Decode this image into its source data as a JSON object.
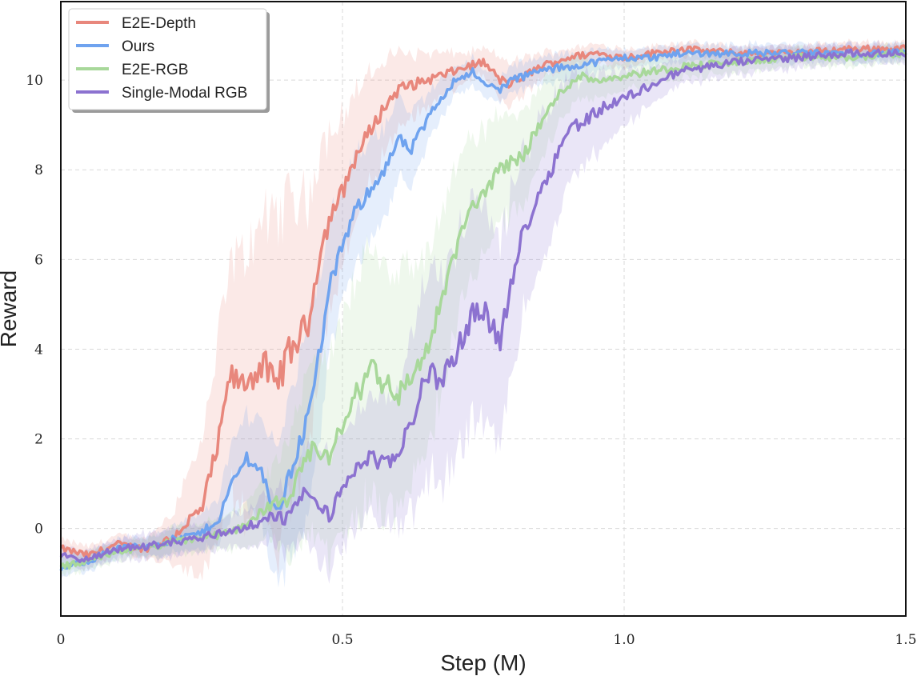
{
  "chart_data": {
    "type": "line",
    "title": "",
    "xlabel": "Step (M)",
    "ylabel": "Reward",
    "xlim": [
      0,
      1.5
    ],
    "ylim": [
      -1.95,
      11.75
    ],
    "xticks": [
      0,
      0.5,
      1.0,
      1.5
    ],
    "xtick_labels": [
      "0",
      "0.5",
      "1.0",
      "1.5"
    ],
    "yticks": [
      0,
      2,
      4,
      6,
      8,
      10
    ],
    "ytick_labels": [
      "0",
      "2",
      "4",
      "6",
      "8",
      "10"
    ],
    "grid": true,
    "legend_position": "top-left",
    "shaded_band": "variance around each series",
    "series": [
      {
        "name": "E2E-Depth",
        "color": "#e8877c",
        "x": [
          0,
          0.05,
          0.1,
          0.15,
          0.2,
          0.22,
          0.25,
          0.28,
          0.3,
          0.32,
          0.34,
          0.36,
          0.38,
          0.4,
          0.42,
          0.44,
          0.46,
          0.48,
          0.5,
          0.52,
          0.55,
          0.58,
          0.6,
          0.65,
          0.7,
          0.72,
          0.75,
          0.78,
          0.8,
          0.85,
          0.9,
          0.95,
          1.0,
          1.05,
          1.1,
          1.2,
          1.3,
          1.4,
          1.5
        ],
        "y": [
          -0.45,
          -0.6,
          -0.35,
          -0.45,
          -0.2,
          0.1,
          0.4,
          1.9,
          3.4,
          3.2,
          3.4,
          3.7,
          3.1,
          3.8,
          4.2,
          4.6,
          6.2,
          7.0,
          7.5,
          8.2,
          8.9,
          9.5,
          9.8,
          10.0,
          10.2,
          10.3,
          10.4,
          10.0,
          9.9,
          10.3,
          10.5,
          10.6,
          10.5,
          10.6,
          10.7,
          10.6,
          10.6,
          10.7,
          10.7
        ],
        "std": [
          0.2,
          0.2,
          0.2,
          0.2,
          0.6,
          1.0,
          1.5,
          2.3,
          2.6,
          2.8,
          3.0,
          3.2,
          3.8,
          3.6,
          3.2,
          2.8,
          2.2,
          1.9,
          1.7,
          1.5,
          1.2,
          1.0,
          0.8,
          0.6,
          0.4,
          0.3,
          0.3,
          0.5,
          0.5,
          0.3,
          0.2,
          0.2,
          0.2,
          0.15,
          0.15,
          0.15,
          0.15,
          0.15,
          0.15
        ]
      },
      {
        "name": "Ours",
        "color": "#6fa3ef",
        "x": [
          0,
          0.05,
          0.1,
          0.15,
          0.2,
          0.25,
          0.28,
          0.3,
          0.33,
          0.36,
          0.38,
          0.4,
          0.42,
          0.44,
          0.46,
          0.48,
          0.5,
          0.52,
          0.55,
          0.58,
          0.6,
          0.62,
          0.65,
          0.68,
          0.7,
          0.73,
          0.75,
          0.78,
          0.8,
          0.85,
          0.9,
          0.95,
          1.0,
          1.05,
          1.1,
          1.2,
          1.3,
          1.4,
          1.5
        ],
        "y": [
          -0.9,
          -0.7,
          -0.45,
          -0.4,
          -0.25,
          -0.1,
          0.2,
          0.9,
          1.6,
          1.2,
          0.3,
          0.9,
          1.8,
          2.5,
          4.0,
          5.5,
          6.3,
          7.0,
          7.6,
          8.1,
          8.7,
          8.4,
          9.1,
          9.7,
          10.0,
          10.2,
          9.9,
          9.8,
          10.0,
          10.2,
          10.3,
          10.4,
          10.5,
          10.5,
          10.6,
          10.6,
          10.6,
          10.6,
          10.6
        ],
        "std": [
          0.2,
          0.2,
          0.2,
          0.2,
          0.3,
          0.4,
          0.5,
          0.8,
          1.0,
          1.2,
          1.5,
          1.8,
          2.0,
          2.0,
          1.8,
          1.5,
          1.2,
          1.2,
          1.1,
          1.0,
          0.9,
          0.8,
          0.6,
          0.4,
          0.3,
          0.3,
          0.3,
          0.3,
          0.3,
          0.3,
          0.3,
          0.25,
          0.2,
          0.2,
          0.2,
          0.2,
          0.2,
          0.2,
          0.2
        ]
      },
      {
        "name": "E2E-RGB",
        "color": "#a8d89a",
        "x": [
          0,
          0.05,
          0.1,
          0.15,
          0.2,
          0.25,
          0.3,
          0.35,
          0.38,
          0.4,
          0.42,
          0.45,
          0.48,
          0.5,
          0.52,
          0.55,
          0.57,
          0.6,
          0.62,
          0.65,
          0.68,
          0.7,
          0.72,
          0.75,
          0.78,
          0.8,
          0.82,
          0.85,
          0.88,
          0.9,
          0.92,
          0.95,
          1.0,
          1.05,
          1.1,
          1.2,
          1.3,
          1.4,
          1.5
        ],
        "y": [
          -0.85,
          -0.75,
          -0.5,
          -0.45,
          -0.3,
          -0.2,
          -0.1,
          0.3,
          0.6,
          0.5,
          1.1,
          1.8,
          1.6,
          2.3,
          2.8,
          3.7,
          3.3,
          3.0,
          3.3,
          4.0,
          5.2,
          6.2,
          6.9,
          7.5,
          8.0,
          8.2,
          8.3,
          9.0,
          9.6,
          9.9,
          10.1,
          10.0,
          10.1,
          10.2,
          10.3,
          10.4,
          10.5,
          10.5,
          10.6
        ],
        "std": [
          0.2,
          0.2,
          0.2,
          0.2,
          0.3,
          0.3,
          0.4,
          0.6,
          0.8,
          1.2,
          1.5,
          2.0,
          2.2,
          2.4,
          2.6,
          2.8,
          2.8,
          2.6,
          2.4,
          2.2,
          2.0,
          1.8,
          1.6,
          1.4,
          1.2,
          1.1,
          1.0,
          0.9,
          0.7,
          0.6,
          0.5,
          0.4,
          0.3,
          0.3,
          0.25,
          0.25,
          0.2,
          0.2,
          0.2
        ]
      },
      {
        "name": "Single-Modal RGB",
        "color": "#8c72d0",
        "x": [
          0,
          0.05,
          0.1,
          0.15,
          0.2,
          0.25,
          0.3,
          0.35,
          0.38,
          0.4,
          0.43,
          0.45,
          0.48,
          0.5,
          0.52,
          0.55,
          0.58,
          0.6,
          0.62,
          0.65,
          0.67,
          0.7,
          0.73,
          0.75,
          0.78,
          0.8,
          0.82,
          0.85,
          0.88,
          0.9,
          0.93,
          0.95,
          1.0,
          1.05,
          1.1,
          1.2,
          1.3,
          1.4,
          1.5
        ],
        "y": [
          -0.6,
          -0.7,
          -0.45,
          -0.4,
          -0.3,
          -0.2,
          -0.05,
          0.1,
          0.3,
          0.2,
          0.8,
          0.6,
          0.3,
          0.9,
          1.3,
          1.6,
          1.4,
          1.7,
          2.3,
          3.5,
          3.3,
          3.8,
          4.8,
          4.9,
          4.2,
          5.4,
          6.6,
          7.5,
          8.3,
          8.9,
          9.1,
          9.3,
          9.6,
          9.9,
          10.2,
          10.4,
          10.5,
          10.6,
          10.6
        ],
        "std": [
          0.2,
          0.2,
          0.25,
          0.3,
          0.3,
          0.3,
          0.35,
          0.5,
          0.6,
          0.8,
          1.0,
          1.2,
          1.3,
          1.3,
          1.3,
          1.3,
          1.4,
          1.6,
          2.0,
          2.3,
          2.4,
          2.4,
          2.4,
          2.3,
          2.2,
          2.0,
          1.8,
          1.6,
          1.4,
          1.2,
          1.0,
          0.9,
          0.6,
          0.4,
          0.3,
          0.3,
          0.25,
          0.2,
          0.2
        ]
      }
    ]
  }
}
